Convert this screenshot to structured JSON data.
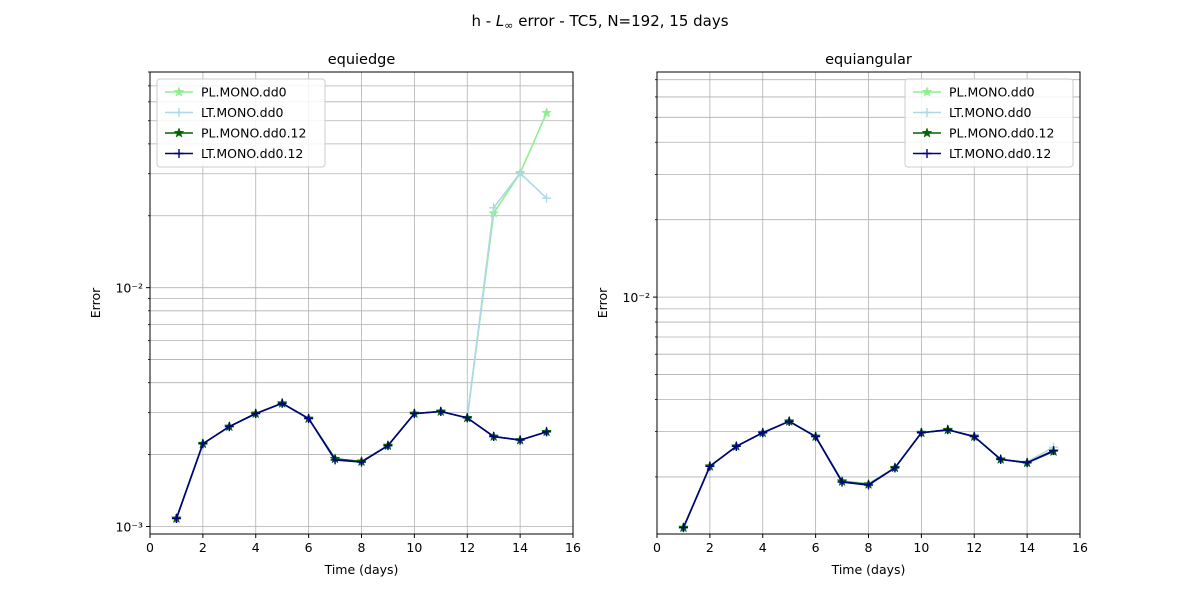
{
  "figure": {
    "suptitle": "h - L∞ error - TC5, N=192, 15 days"
  },
  "colors": {
    "PL.MONO.dd0": "#90ee90",
    "LT.MONO.dd0": "#add8e6",
    "PL.MONO.dd0.12": "#006400",
    "LT.MONO.dd0.12": "#000080",
    "grid": "#b0b0b0"
  },
  "chart_data": [
    {
      "type": "line",
      "title": "equiedge",
      "xlabel": "Time (days)",
      "ylabel": "Error",
      "yscale": "log",
      "xlim": [
        0,
        16
      ],
      "ylim": [
        0.00093,
        0.08
      ],
      "x_ticks": [
        0,
        2,
        4,
        6,
        8,
        10,
        12,
        14,
        16
      ],
      "y_tick_labels": [
        "10⁻³",
        "10⁻²"
      ],
      "grid": true,
      "legend_position": "upper-left",
      "series": [
        {
          "name": "PL.MONO.dd0",
          "marker": "star",
          "x": [
            1,
            2,
            3,
            4,
            5,
            6,
            7,
            8,
            9,
            10,
            11,
            12,
            13,
            14,
            15
          ],
          "values": [
            0.00108,
            0.00222,
            0.00262,
            0.00297,
            0.00328,
            0.00283,
            0.00192,
            0.00187,
            0.00218,
            0.00297,
            0.00303,
            0.00285,
            0.0205,
            0.0302,
            0.0539
          ]
        },
        {
          "name": "LT.MONO.dd0",
          "marker": "plus",
          "x": [
            1,
            2,
            3,
            4,
            5,
            6,
            7,
            8,
            9,
            10,
            11,
            12,
            13,
            14,
            15
          ],
          "values": [
            0.00108,
            0.00222,
            0.00262,
            0.00297,
            0.00328,
            0.00283,
            0.00192,
            0.00187,
            0.00218,
            0.00297,
            0.00303,
            0.00285,
            0.0216,
            0.0302,
            0.0237
          ]
        },
        {
          "name": "PL.MONO.dd0.12",
          "marker": "star",
          "x": [
            1,
            2,
            3,
            4,
            5,
            6,
            7,
            8,
            9,
            10,
            11,
            12,
            13,
            14,
            15
          ],
          "values": [
            0.00108,
            0.00222,
            0.00262,
            0.00297,
            0.00328,
            0.00283,
            0.00192,
            0.00187,
            0.00218,
            0.00297,
            0.00303,
            0.00285,
            0.00238,
            0.0023,
            0.00249
          ]
        },
        {
          "name": "LT.MONO.dd0.12",
          "marker": "plus",
          "x": [
            1,
            2,
            3,
            4,
            5,
            6,
            7,
            8,
            9,
            10,
            11,
            12,
            13,
            14,
            15
          ],
          "values": [
            0.00108,
            0.00222,
            0.00262,
            0.00297,
            0.00328,
            0.00283,
            0.0019,
            0.00186,
            0.00218,
            0.00297,
            0.00303,
            0.00285,
            0.00238,
            0.0023,
            0.00249
          ]
        }
      ]
    },
    {
      "type": "line",
      "title": "equiangular",
      "xlabel": "Time (days)",
      "ylabel": "Error",
      "yscale": "log",
      "xlim": [
        0,
        16
      ],
      "ylim": [
        0.0012,
        0.075
      ],
      "x_ticks": [
        0,
        2,
        4,
        6,
        8,
        10,
        12,
        14,
        16
      ],
      "y_tick_labels": [
        "10⁻²"
      ],
      "grid": true,
      "legend_position": "upper-right",
      "series": [
        {
          "name": "PL.MONO.dd0",
          "marker": "star",
          "x": [
            1,
            2,
            3,
            4,
            5,
            6,
            7,
            8,
            9,
            10,
            11,
            12,
            13,
            14,
            15
          ],
          "values": [
            0.00127,
            0.0022,
            0.00263,
            0.00297,
            0.00329,
            0.00287,
            0.00193,
            0.00188,
            0.00217,
            0.00297,
            0.00305,
            0.00287,
            0.00234,
            0.00227,
            0.00252
          ]
        },
        {
          "name": "LT.MONO.dd0",
          "marker": "plus",
          "x": [
            1,
            2,
            3,
            4,
            5,
            6,
            7,
            8,
            9,
            10,
            11,
            12,
            13,
            14,
            15
          ],
          "values": [
            0.00127,
            0.0022,
            0.00263,
            0.00297,
            0.00329,
            0.00287,
            0.00193,
            0.00188,
            0.00217,
            0.00297,
            0.00305,
            0.00287,
            0.00234,
            0.00229,
            0.00261
          ]
        },
        {
          "name": "PL.MONO.dd0.12",
          "marker": "star",
          "x": [
            1,
            2,
            3,
            4,
            5,
            6,
            7,
            8,
            9,
            10,
            11,
            12,
            13,
            14,
            15
          ],
          "values": [
            0.00127,
            0.0022,
            0.00263,
            0.00297,
            0.00329,
            0.00287,
            0.00192,
            0.00187,
            0.00217,
            0.00297,
            0.00305,
            0.00287,
            0.00234,
            0.00227,
            0.00251
          ]
        },
        {
          "name": "LT.MONO.dd0.12",
          "marker": "plus",
          "x": [
            1,
            2,
            3,
            4,
            5,
            6,
            7,
            8,
            9,
            10,
            11,
            12,
            13,
            14,
            15
          ],
          "values": [
            0.00127,
            0.0022,
            0.00263,
            0.00297,
            0.00329,
            0.00287,
            0.00191,
            0.00186,
            0.00217,
            0.00297,
            0.00305,
            0.00287,
            0.00234,
            0.00227,
            0.00253
          ]
        }
      ]
    }
  ]
}
